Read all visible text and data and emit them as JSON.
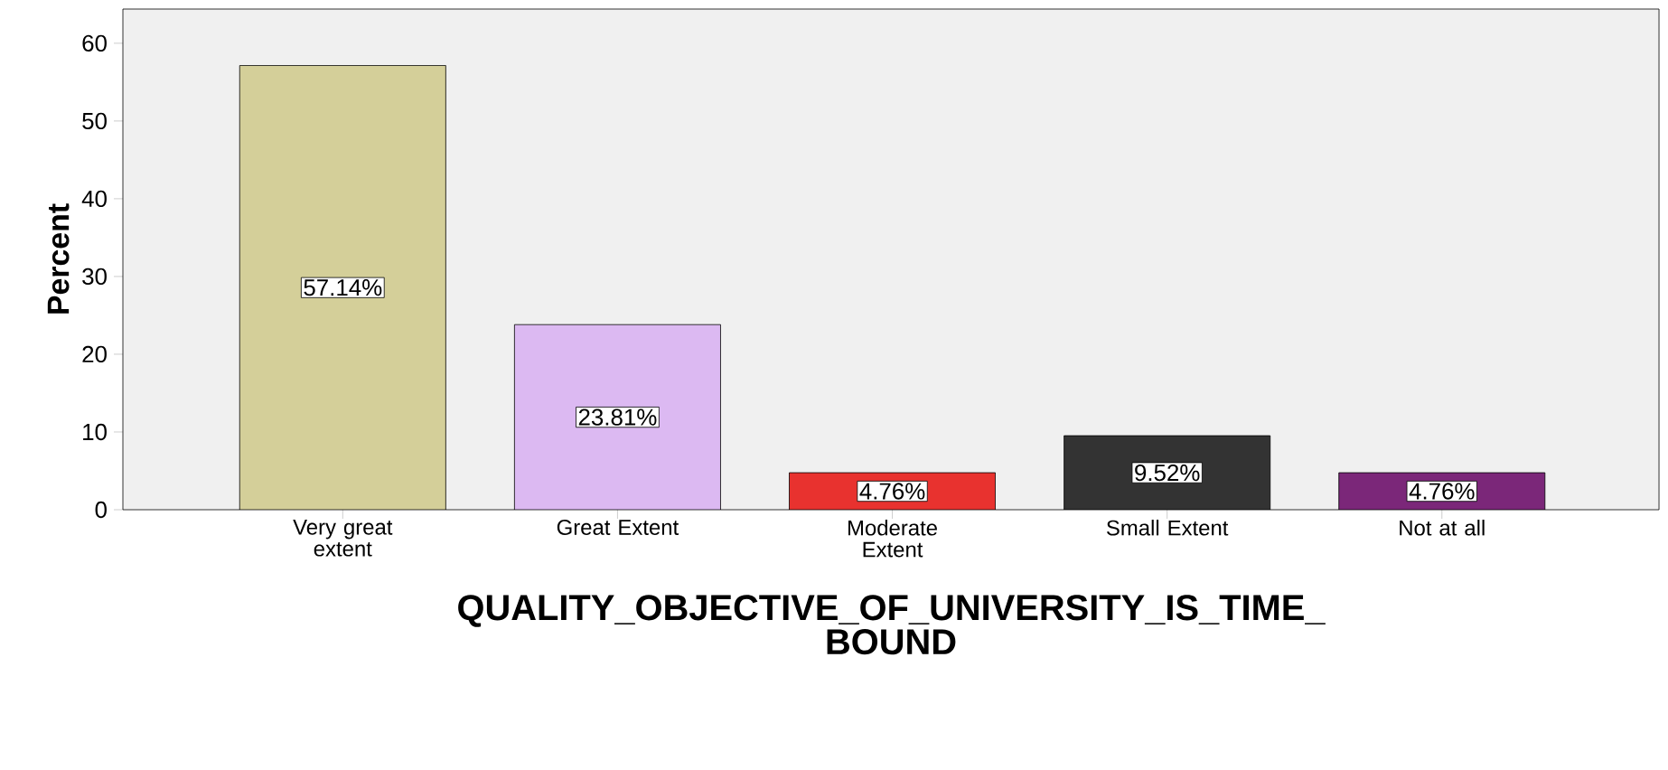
{
  "chart_data": {
    "type": "bar",
    "xlabel": "QUALITY_OBJECTIVE_OF_UNIVERSITY_IS_TIME_ BOUND",
    "ylabel": "Percent",
    "categories": [
      "Very great extent",
      "Great Extent",
      "Moderate Extent",
      "Small Extent",
      "Not at all"
    ],
    "values": [
      57.14,
      23.81,
      4.76,
      9.52,
      4.76
    ],
    "value_labels": [
      "57.14%",
      "23.81%",
      "4.76%",
      "9.52%",
      "4.76%"
    ],
    "colors": [
      "#d4cf99",
      "#dcb9f2",
      "#e8322f",
      "#333333",
      "#7b2779"
    ],
    "ylim": [
      0,
      64.4
    ],
    "yticks": [
      0,
      10,
      20,
      30,
      40,
      50,
      60
    ],
    "grid": false
  }
}
